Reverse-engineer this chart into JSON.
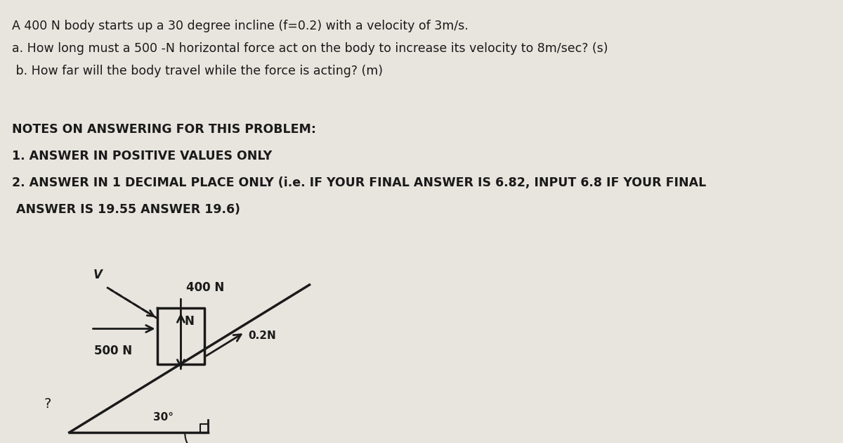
{
  "bg_color": "#e8e5de",
  "text_color": "#1a1a1a",
  "title_lines": [
    "A 400 N body starts up a 30 degree incline (f=0.2) with a velocity of 3m/s.",
    "a. How long must a 500 -N horizontal force act on the body to increase its velocity to 8m/sec? (s)",
    " b. How far will the body travel while the force is acting? (m)"
  ],
  "notes_header": "NOTES ON ANSWERING FOR THIS PROBLEM:",
  "note1": "1. ANSWER IN POSITIVE VALUES ONLY",
  "note2": "2. ANSWER IN 1 DECIMAL PLACE ONLY (i.e. IF YOUR FINAL ANSWER IS 6.82, INPUT 6.8 IF YOUR FINAL",
  "note2b": " ANSWER IS 19.55 ANSWER 19.6)",
  "velocity_label": "V",
  "weight_label": "400 N",
  "horiz_label": "500 N",
  "friction_label": "0.2N",
  "normal_label": "N",
  "angle_label": "30°"
}
